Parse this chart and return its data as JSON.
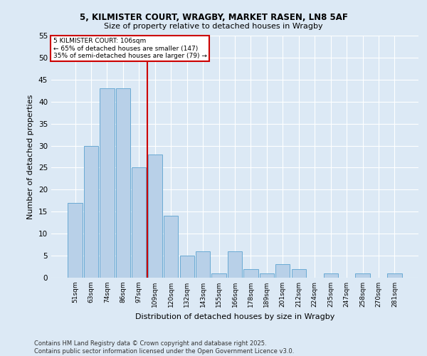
{
  "title1": "5, KILMISTER COURT, WRAGBY, MARKET RASEN, LN8 5AF",
  "title2": "Size of property relative to detached houses in Wragby",
  "xlabel": "Distribution of detached houses by size in Wragby",
  "ylabel": "Number of detached properties",
  "categories": [
    "51sqm",
    "63sqm",
    "74sqm",
    "86sqm",
    "97sqm",
    "109sqm",
    "120sqm",
    "132sqm",
    "143sqm",
    "155sqm",
    "166sqm",
    "178sqm",
    "189sqm",
    "201sqm",
    "212sqm",
    "224sqm",
    "235sqm",
    "247sqm",
    "258sqm",
    "270sqm",
    "281sqm"
  ],
  "values": [
    17,
    30,
    43,
    43,
    25,
    28,
    14,
    5,
    6,
    1,
    6,
    2,
    1,
    3,
    2,
    0,
    1,
    0,
    1,
    0,
    1
  ],
  "bar_color": "#b8d0e8",
  "bar_edge_color": "#6aaad4",
  "annotation_text": "5 KILMISTER COURT: 106sqm\n← 65% of detached houses are smaller (147)\n35% of semi-detached houses are larger (79) →",
  "annotation_box_color": "#ffffff",
  "annotation_box_edge": "#cc0000",
  "vline_color": "#cc0000",
  "background_color": "#dce9f5",
  "plot_bg_color": "#dce9f5",
  "footer": "Contains HM Land Registry data © Crown copyright and database right 2025.\nContains public sector information licensed under the Open Government Licence v3.0.",
  "ylim": [
    0,
    55
  ],
  "yticks": [
    0,
    5,
    10,
    15,
    20,
    25,
    30,
    35,
    40,
    45,
    50,
    55
  ]
}
